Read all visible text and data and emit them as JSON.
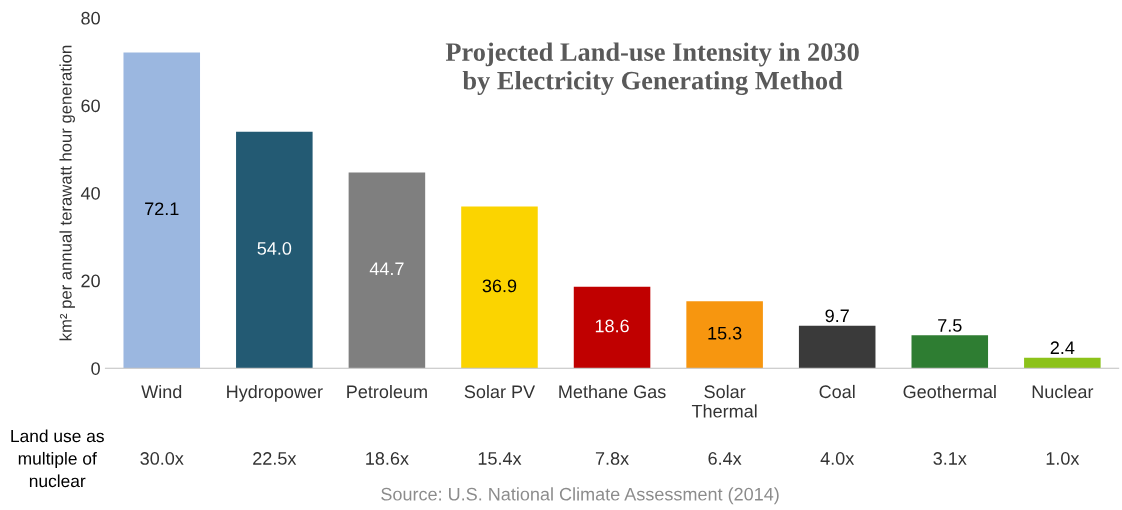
{
  "chart_data": {
    "type": "bar",
    "title": "Projected Land-use Intensity in 2030\nby Electricity Generating Method",
    "ylabel": "km² per annual terawatt hour generation",
    "categories": [
      "Wind",
      "Hydropower",
      "Petroleum",
      "Solar PV",
      "Methane Gas",
      "Solar Thermal",
      "Coal",
      "Geothermal",
      "Nuclear"
    ],
    "values": [
      72.1,
      54.0,
      44.7,
      36.9,
      18.6,
      15.3,
      9.7,
      7.5,
      2.4
    ],
    "value_labels": [
      "72.1",
      "54.0",
      "44.7",
      "36.9",
      "18.6",
      "15.3",
      "9.7",
      "7.5",
      "2.4"
    ],
    "colors": [
      "#9bb7e0",
      "#235a73",
      "#7f7f7f",
      "#fbd400",
      "#c00000",
      "#f7960f",
      "#3a3a3a",
      "#2e7d32",
      "#8cc21a"
    ],
    "ylim": [
      0,
      80
    ],
    "yticks": [
      0,
      20,
      40,
      60,
      80
    ],
    "grid": false,
    "legend": false,
    "annotations": [
      "Land use as multiple of nuclear",
      "30.0x",
      "22.5x",
      "18.6x",
      "15.4x",
      "7.8x",
      "6.4x",
      "4.0x",
      "3.1x",
      "1.0x",
      "Source: U.S. National Climate Assessment (2014)"
    ]
  }
}
